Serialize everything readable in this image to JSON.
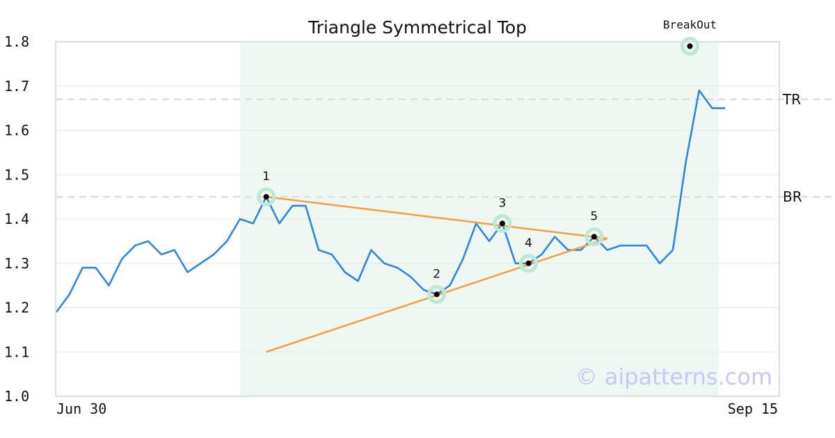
{
  "chart_data": {
    "type": "line",
    "title": "Triangle Symmetrical Top",
    "ylim": [
      1.0,
      1.8
    ],
    "y_ticks": [
      "1.0",
      "1.1",
      "1.2",
      "1.3",
      "1.4",
      "1.5",
      "1.6",
      "1.7",
      "1.8"
    ],
    "x_tick_labels": [
      "Jun 30",
      "Sep 15"
    ],
    "grid": "horizontal",
    "series": [
      {
        "values": [
          1.19,
          1.23,
          1.29,
          1.29,
          1.25,
          1.31,
          1.34,
          1.35,
          1.32,
          1.33,
          1.28,
          1.3,
          1.32,
          1.35,
          1.4,
          1.39,
          1.45,
          1.39,
          1.43,
          1.43,
          1.33,
          1.32,
          1.28,
          1.26,
          1.33,
          1.3,
          1.29,
          1.27,
          1.24,
          1.23,
          1.25,
          1.31,
          1.39,
          1.35,
          1.39,
          1.3,
          1.3,
          1.32,
          1.36,
          1.33,
          1.33,
          1.36,
          1.33,
          1.34,
          1.34,
          1.34,
          1.3,
          1.33,
          1.53,
          1.69,
          1.65,
          1.65
        ],
        "color": "#2e86de"
      }
    ],
    "pattern_region": {
      "start_index": 14,
      "end_index": 50.5,
      "color": "#eef7f2"
    },
    "reference_lines": [
      {
        "label": "TR",
        "value": 1.67,
        "color": "#dddddd"
      },
      {
        "label": "BR",
        "value": 1.45,
        "color": "#dddddd"
      }
    ],
    "trend_lines": [
      {
        "from": [
          16,
          1.45
        ],
        "to": [
          42,
          1.356
        ],
        "color": "#f5a04a"
      },
      {
        "from": [
          16,
          1.1
        ],
        "to": [
          42,
          1.356
        ],
        "color": "#f5a04a"
      }
    ],
    "pattern_points": [
      {
        "label": "1",
        "index": 16,
        "value": 1.45
      },
      {
        "label": "2",
        "index": 29,
        "value": 1.23
      },
      {
        "label": "3",
        "index": 34,
        "value": 1.39
      },
      {
        "label": "4",
        "index": 36,
        "value": 1.3
      },
      {
        "label": "5",
        "index": 41,
        "value": 1.36
      }
    ],
    "breakout": {
      "label": "BreakOut",
      "index": 48.3,
      "value": 1.79
    },
    "watermark": "© aipatterns.com"
  }
}
